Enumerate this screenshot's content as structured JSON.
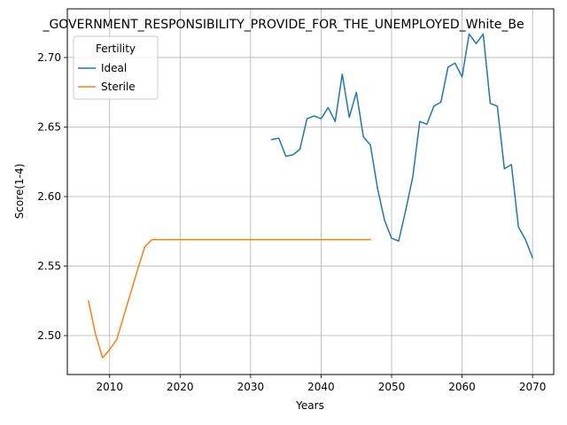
{
  "chart_data": {
    "type": "line",
    "title": "_GOVERNMENT_RESPONSIBILITY_PROVIDE_FOR_THE_UNEMPLOYED_White_Be",
    "xlabel": "Years",
    "ylabel": "Score(1-4)",
    "xlim": [
      2004,
      2073
    ],
    "ylim": [
      2.472,
      2.735
    ],
    "xticks": [
      2010,
      2020,
      2030,
      2040,
      2050,
      2060,
      2070
    ],
    "yticks": [
      2.5,
      2.55,
      2.6,
      2.65,
      2.7
    ],
    "ytick_labels": [
      "2.50",
      "2.55",
      "2.60",
      "2.65",
      "2.70"
    ],
    "grid": true,
    "legend": {
      "title": "Fertility",
      "placement": "top-left"
    },
    "series": [
      {
        "name": "Ideal",
        "color": "#1f77b4",
        "x": [
          2033,
          2034,
          2035,
          2036,
          2037,
          2038,
          2039,
          2040,
          2041,
          2042,
          2043,
          2044,
          2045,
          2046,
          2047,
          2048,
          2049,
          2050,
          2051,
          2052,
          2053,
          2054,
          2055,
          2056,
          2057,
          2058,
          2059,
          2060,
          2061,
          2062,
          2063,
          2064,
          2065,
          2066,
          2067,
          2068,
          2069,
          2070
        ],
        "y": [
          2.641,
          2.642,
          2.629,
          2.63,
          2.634,
          2.656,
          2.658,
          2.656,
          2.664,
          2.654,
          2.688,
          2.657,
          2.675,
          2.643,
          2.637,
          2.606,
          2.583,
          2.57,
          2.568,
          2.59,
          2.614,
          2.654,
          2.652,
          2.665,
          2.668,
          2.693,
          2.696,
          2.686,
          2.717,
          2.71,
          2.717,
          2.667,
          2.665,
          2.62,
          2.623,
          2.578,
          2.569,
          2.556
        ]
      },
      {
        "name": "Sterile",
        "color": "#ff7f0e",
        "x": [
          2007,
          2008,
          2009,
          2010,
          2011,
          2012,
          2013,
          2014,
          2015,
          2016,
          2017,
          2020,
          2025,
          2030,
          2035,
          2040,
          2045,
          2047
        ],
        "y": [
          2.525,
          2.501,
          2.484,
          2.49,
          2.497,
          2.514,
          2.531,
          2.548,
          2.564,
          2.569,
          2.569,
          2.569,
          2.569,
          2.569,
          2.569,
          2.569,
          2.569,
          2.569
        ]
      }
    ]
  }
}
